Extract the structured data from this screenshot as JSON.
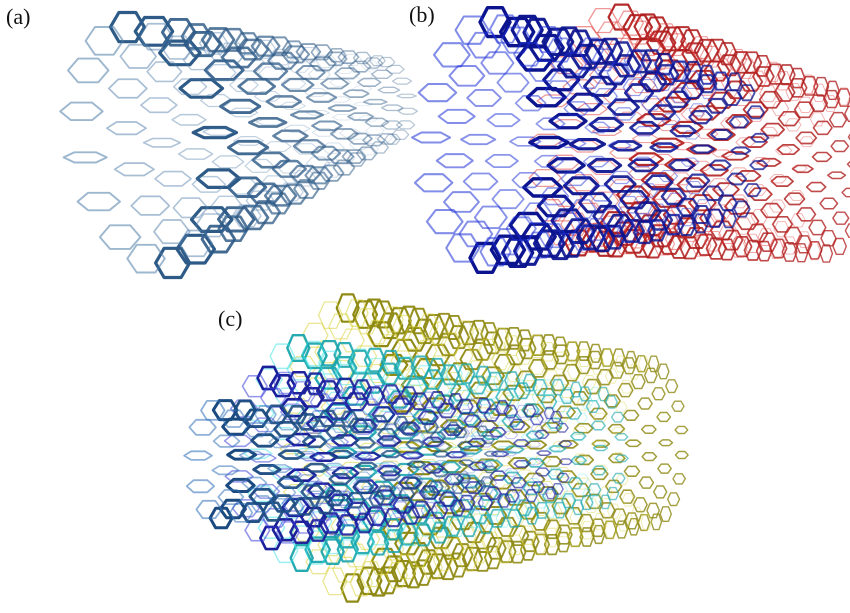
{
  "panels": [
    {
      "id": "a",
      "label": "(a)",
      "layers": [
        {
          "color": "#4d7ba8",
          "edge": "#2d5a86"
        }
      ]
    },
    {
      "id": "b",
      "label": "(b)",
      "layers": [
        {
          "color": "#e03a3a",
          "edge": "#b01d1d"
        },
        {
          "color": "#1c2fd6",
          "edge": "#0b138f"
        }
      ]
    },
    {
      "id": "c",
      "label": "(c)",
      "layers": [
        {
          "color": "#d9d23b",
          "edge": "#8f8a14"
        },
        {
          "color": "#3fe3e6",
          "edge": "#1aa5ad"
        },
        {
          "color": "#3a3fd9",
          "edge": "#1a1f9a"
        },
        {
          "color": "#2f6fb8",
          "edge": "#1a4a80"
        }
      ]
    }
  ],
  "colors": {
    "background": "#ffffff"
  }
}
